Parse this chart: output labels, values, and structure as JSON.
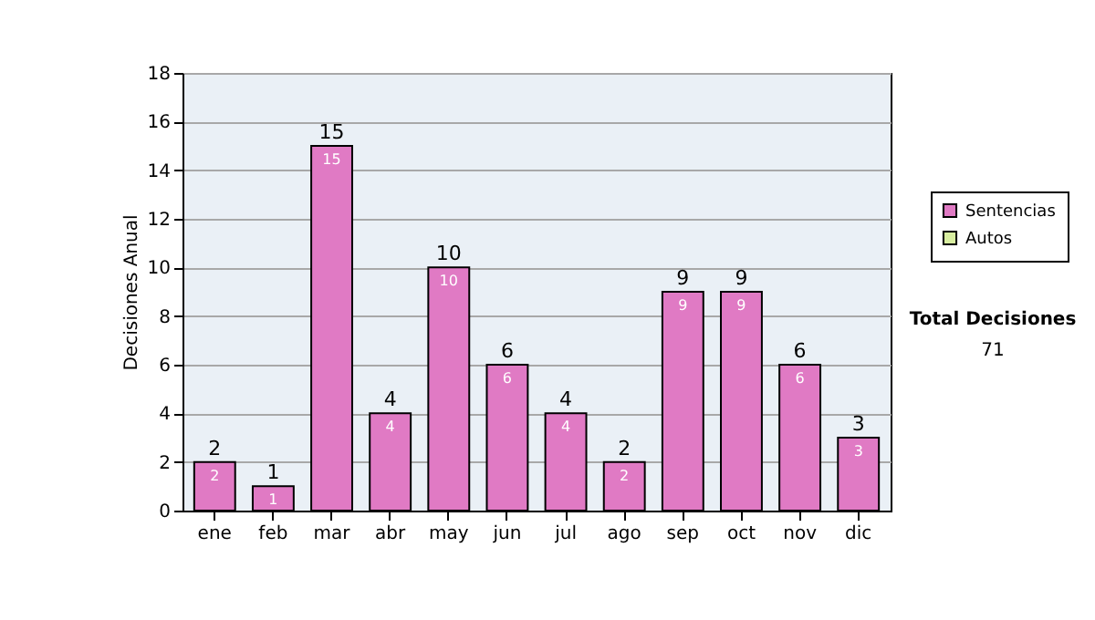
{
  "chart_data": {
    "type": "bar",
    "ylabel": "Decisiones Anual",
    "categories": [
      "ene",
      "feb",
      "mar",
      "abr",
      "may",
      "jun",
      "jul",
      "ago",
      "sep",
      "oct",
      "nov",
      "dic"
    ],
    "series": [
      {
        "name": "Sentencias",
        "color": "#e07ac4",
        "values": [
          2,
          1,
          15,
          4,
          10,
          6,
          4,
          2,
          9,
          9,
          6,
          3
        ]
      },
      {
        "name": "Autos",
        "color": "#d8eea0",
        "values": [
          null,
          null,
          null,
          null,
          null,
          null,
          null,
          null,
          null,
          null,
          null,
          null
        ]
      }
    ],
    "ylim": [
      0,
      18
    ],
    "yticks": [
      0,
      2,
      4,
      6,
      8,
      10,
      12,
      14,
      16,
      18
    ],
    "grid": "y",
    "legend": "right",
    "totals": [
      "2",
      "1",
      "15",
      "4",
      "10",
      "6",
      "4",
      "2",
      "9",
      "9",
      "6",
      "3"
    ],
    "value_labels": [
      "2",
      "1",
      "15",
      "4",
      "10",
      "6",
      "4",
      "2",
      "9",
      "9",
      "6",
      "3"
    ],
    "annotations": [
      "Total Decisiones",
      "71"
    ]
  }
}
